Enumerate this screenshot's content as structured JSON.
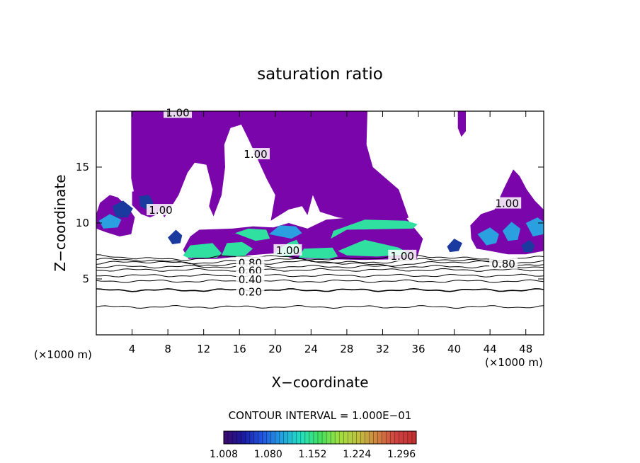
{
  "chart_data": {
    "type": "heatmap",
    "title": "saturation ratio",
    "xlabel": "X−coordinate",
    "ylabel": "Z−coordinate",
    "x_unit_left": "(×1000 m)",
    "x_unit_right": "(×1000 m)",
    "xlim": [
      0,
      50
    ],
    "ylim": [
      0,
      20
    ],
    "x_ticks": [
      4,
      8,
      12,
      16,
      20,
      24,
      28,
      32,
      36,
      40,
      44,
      48
    ],
    "x_tick_labels": [
      "4",
      "8",
      "12",
      "16",
      "20",
      "24",
      "28",
      "32",
      "36",
      "40",
      "44",
      "48"
    ],
    "y_ticks": [
      5,
      10,
      15
    ],
    "y_tick_labels": [
      "5",
      "10",
      "15"
    ],
    "contour_interval_text": "CONTOUR INTERVAL = 1.000E−01",
    "contour_labels": [
      {
        "text": "1.00",
        "x": 9.1,
        "y": 19.9
      },
      {
        "text": "1.00",
        "x": 17.8,
        "y": 16.2
      },
      {
        "text": "1.00",
        "x": 7.2,
        "y": 11.2
      },
      {
        "text": "1.00",
        "x": 21.4,
        "y": 7.6
      },
      {
        "text": "1.00",
        "x": 34.2,
        "y": 7.1
      },
      {
        "text": "1.00",
        "x": 45.9,
        "y": 11.8
      },
      {
        "text": "0.80",
        "x": 17.2,
        "y": 6.5
      },
      {
        "text": "0.60",
        "x": 17.2,
        "y": 5.8
      },
      {
        "text": "0.40",
        "x": 17.2,
        "y": 5.0
      },
      {
        "text": "0.20",
        "x": 17.2,
        "y": 3.9
      },
      {
        "text": "0.80",
        "x": 45.5,
        "y": 6.4
      }
    ],
    "contour_levels": [
      0.2,
      0.3,
      0.4,
      0.5,
      0.6,
      0.7,
      0.8,
      0.9,
      1.0
    ],
    "colorbar": {
      "min": 1.008,
      "max": 1.32,
      "tick_labels": [
        "1.008",
        "1.080",
        "1.152",
        "1.224",
        "1.296"
      ],
      "colors": [
        "#3a0a6a",
        "#1a1aa0",
        "#2255e0",
        "#22a0e0",
        "#22e0c0",
        "#44e060",
        "#a0e040",
        "#c0c040",
        "#d08040",
        "#d04040",
        "#c03030"
      ]
    },
    "fill_colors": {
      "saturated": "#7a05aa",
      "supersat_low": "#1a3aa0",
      "supersat_mid": "#2aa0e0",
      "supersat_high": "#30e0a0"
    }
  }
}
